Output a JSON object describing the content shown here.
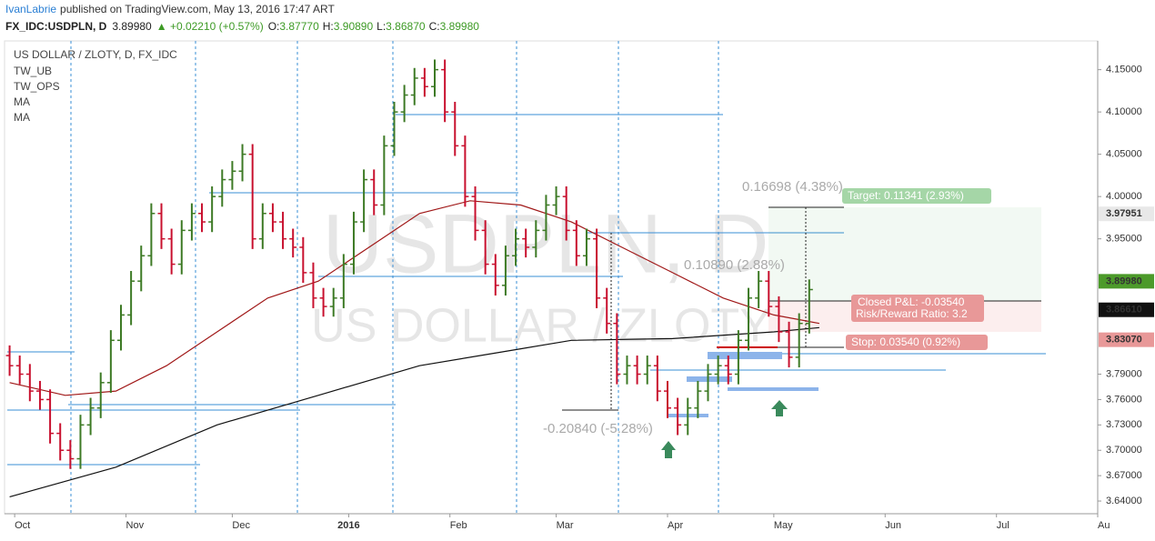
{
  "header": {
    "author": "IvanLabrie",
    "published": "published on TradingView.com, May 13, 2016 17:47 ART",
    "symbol": "FX_IDC:USDPLN, D",
    "last": "3.89980",
    "change": "▲ +0.02210 (+0.57%)",
    "open_label": "O:",
    "open": "3.87770",
    "high_label": "H:",
    "high": "3.90890",
    "low_label": "L:",
    "low": "3.86870",
    "close_label": "C:",
    "close": "3.89980"
  },
  "chart_data": {
    "type": "ohlc",
    "title": "US DOLLAR / ZLOTY, D, FX_IDC",
    "indicators": [
      "TW_UB",
      "TW_OPS",
      "MA",
      "MA"
    ],
    "watermark": "USDPLN, D",
    "watermark_sub": "US DOLLAR / ZLOTY",
    "up_color": "#3d7a25",
    "down_color": "#c8102e",
    "xlim": [
      -2,
      214
    ],
    "ylim": [
      3.625,
      4.184
    ],
    "xticks": [
      {
        "value": 0,
        "label": "Oct"
      },
      {
        "value": 22,
        "label": "Nov"
      },
      {
        "value": 43,
        "label": "Dec"
      },
      {
        "value": 66,
        "label": "2016"
      },
      {
        "value": 86,
        "label": "Feb"
      },
      {
        "value": 107,
        "label": "Mar"
      },
      {
        "value": 129,
        "label": "Apr"
      },
      {
        "value": 150,
        "label": "May"
      },
      {
        "value": 172,
        "label": "Jun"
      },
      {
        "value": 194,
        "label": "Jul"
      },
      {
        "value": 214,
        "label": "Au"
      }
    ],
    "yticks": [
      {
        "value": 3.64,
        "label": "3.64000"
      },
      {
        "value": 3.67,
        "label": "3.67000"
      },
      {
        "value": 3.7,
        "label": "3.70000"
      },
      {
        "value": 3.73,
        "label": "3.73000"
      },
      {
        "value": 3.76,
        "label": "3.76000"
      },
      {
        "value": 3.79,
        "label": "3.79000"
      },
      {
        "value": 3.95,
        "label": "3.95000"
      },
      {
        "value": 4.0,
        "label": "4.00000"
      },
      {
        "value": 4.05,
        "label": "4.05000"
      },
      {
        "value": 4.1,
        "label": "4.10000"
      },
      {
        "value": 4.15,
        "label": "4.15000"
      }
    ],
    "x": [
      -1,
      1,
      3,
      5,
      7,
      9,
      11,
      13,
      15,
      17,
      19,
      21,
      23,
      25,
      27,
      29,
      31,
      33,
      35,
      37,
      39,
      41,
      43,
      45,
      47,
      49,
      51,
      53,
      55,
      57,
      59,
      61,
      63,
      65,
      67,
      69,
      71,
      73,
      75,
      77,
      79,
      81,
      83,
      85,
      87,
      89,
      91,
      93,
      95,
      97,
      99,
      101,
      103,
      105,
      107,
      109,
      111,
      113,
      115,
      117,
      119,
      121,
      123,
      125,
      127,
      129,
      131,
      133,
      135,
      137,
      139,
      141,
      143,
      145,
      147,
      149,
      151,
      153,
      155,
      157
    ],
    "ohlc": [
      [
        3.812,
        3.824,
        3.788,
        3.8
      ],
      [
        3.8,
        3.812,
        3.778,
        3.79
      ],
      [
        3.79,
        3.802,
        3.758,
        3.77
      ],
      [
        3.77,
        3.782,
        3.748,
        3.76
      ],
      [
        3.76,
        3.772,
        3.708,
        3.72
      ],
      [
        3.72,
        3.732,
        3.688,
        3.7
      ],
      [
        3.7,
        3.712,
        3.678,
        3.69
      ],
      [
        3.69,
        3.742,
        3.678,
        3.73
      ],
      [
        3.73,
        3.762,
        3.718,
        3.75
      ],
      [
        3.75,
        3.792,
        3.738,
        3.78
      ],
      [
        3.78,
        3.842,
        3.768,
        3.83
      ],
      [
        3.83,
        3.872,
        3.818,
        3.86
      ],
      [
        3.86,
        3.912,
        3.848,
        3.9
      ],
      [
        3.9,
        3.942,
        3.888,
        3.93
      ],
      [
        3.93,
        3.992,
        3.918,
        3.98
      ],
      [
        3.98,
        3.992,
        3.938,
        3.95
      ],
      [
        3.95,
        3.962,
        3.908,
        3.92
      ],
      [
        3.92,
        3.972,
        3.908,
        3.96
      ],
      [
        3.96,
        3.992,
        3.948,
        3.98
      ],
      [
        3.98,
        3.992,
        3.958,
        3.97
      ],
      [
        3.97,
        4.012,
        3.958,
        4.0
      ],
      [
        4.0,
        4.032,
        3.988,
        4.02
      ],
      [
        4.02,
        4.042,
        4.008,
        4.03
      ],
      [
        4.03,
        4.062,
        4.018,
        4.05
      ],
      [
        4.05,
        4.062,
        3.938,
        3.95
      ],
      [
        3.95,
        3.992,
        3.938,
        3.98
      ],
      [
        3.98,
        3.992,
        3.958,
        3.97
      ],
      [
        3.97,
        3.982,
        3.938,
        3.95
      ],
      [
        3.95,
        3.962,
        3.928,
        3.94
      ],
      [
        3.94,
        3.952,
        3.898,
        3.91
      ],
      [
        3.91,
        3.922,
        3.868,
        3.88
      ],
      [
        3.88,
        3.892,
        3.858,
        3.87
      ],
      [
        3.87,
        3.892,
        3.858,
        3.88
      ],
      [
        3.88,
        3.932,
        3.868,
        3.92
      ],
      [
        3.92,
        3.982,
        3.908,
        3.97
      ],
      [
        3.97,
        4.032,
        3.958,
        4.02
      ],
      [
        4.02,
        4.032,
        3.978,
        3.99
      ],
      [
        3.99,
        4.072,
        3.978,
        4.06
      ],
      [
        4.06,
        4.112,
        4.048,
        4.1
      ],
      [
        4.1,
        4.132,
        4.088,
        4.12
      ],
      [
        4.12,
        4.152,
        4.108,
        4.14
      ],
      [
        4.14,
        4.152,
        4.118,
        4.13
      ],
      [
        4.13,
        4.162,
        4.118,
        4.15
      ],
      [
        4.15,
        4.162,
        4.088,
        4.1
      ],
      [
        4.1,
        4.112,
        4.048,
        4.06
      ],
      [
        4.06,
        4.072,
        3.988,
        4.0
      ],
      [
        4.0,
        4.012,
        3.948,
        3.96
      ],
      [
        3.96,
        3.972,
        3.908,
        3.92
      ],
      [
        3.92,
        3.932,
        3.883,
        3.895
      ],
      [
        3.895,
        3.942,
        3.883,
        3.93
      ],
      [
        3.93,
        3.962,
        3.918,
        3.95
      ],
      [
        3.95,
        3.962,
        3.928,
        3.94
      ],
      [
        3.94,
        3.972,
        3.928,
        3.96
      ],
      [
        3.96,
        4.002,
        3.948,
        3.99
      ],
      [
        3.99,
        4.012,
        3.978,
        4.0
      ],
      [
        4.0,
        4.012,
        3.948,
        3.96
      ],
      [
        3.96,
        3.972,
        3.918,
        3.93
      ],
      [
        3.93,
        3.962,
        3.918,
        3.95
      ],
      [
        3.95,
        3.962,
        3.868,
        3.88
      ],
      [
        3.88,
        3.892,
        3.838,
        3.85
      ],
      [
        3.85,
        3.862,
        3.778,
        3.79
      ],
      [
        3.79,
        3.812,
        3.778,
        3.8
      ],
      [
        3.8,
        3.812,
        3.778,
        3.79
      ],
      [
        3.79,
        3.812,
        3.778,
        3.8
      ],
      [
        3.8,
        3.812,
        3.758,
        3.77
      ],
      [
        3.77,
        3.782,
        3.738,
        3.75
      ],
      [
        3.75,
        3.762,
        3.718,
        3.73
      ],
      [
        3.73,
        3.762,
        3.718,
        3.75
      ],
      [
        3.75,
        3.782,
        3.738,
        3.77
      ],
      [
        3.77,
        3.802,
        3.758,
        3.79
      ],
      [
        3.79,
        3.812,
        3.778,
        3.8
      ],
      [
        3.8,
        3.812,
        3.778,
        3.79
      ],
      [
        3.79,
        3.842,
        3.778,
        3.83
      ],
      [
        3.83,
        3.892,
        3.818,
        3.88
      ],
      [
        3.88,
        3.912,
        3.868,
        3.9
      ],
      [
        3.9,
        3.912,
        3.858,
        3.87
      ],
      [
        3.87,
        3.882,
        3.828,
        3.84
      ],
      [
        3.84,
        3.852,
        3.798,
        3.81
      ],
      [
        3.81,
        3.862,
        3.798,
        3.85
      ],
      [
        3.85,
        3.902,
        3.838,
        3.89
      ]
    ],
    "series": [
      {
        "name": "MA",
        "color": "#a01818",
        "x": [
          -1,
          10,
          20,
          30,
          40,
          50,
          60,
          70,
          80,
          90,
          100,
          110,
          120,
          130,
          140,
          150,
          159
        ],
        "values": [
          3.78,
          3.765,
          3.77,
          3.8,
          3.84,
          3.88,
          3.9,
          3.94,
          3.98,
          3.995,
          3.99,
          3.97,
          3.94,
          3.91,
          3.88,
          3.86,
          3.85
        ]
      },
      {
        "name": "MA",
        "color": "#111111",
        "x": [
          -1,
          20,
          40,
          60,
          80,
          100,
          110,
          130,
          150,
          159
        ],
        "values": [
          3.645,
          3.68,
          3.73,
          3.765,
          3.8,
          3.82,
          3.83,
          3.832,
          3.84,
          3.845
        ]
      }
    ],
    "price_labels": [
      {
        "value": 3.97951,
        "label": "3.97951",
        "color": "#e8e8e8",
        "text_color": "#222222"
      },
      {
        "value": 3.8998,
        "label": "3.89980",
        "color": "#4c9a2a",
        "text_color": "#ffffff"
      },
      {
        "value": 3.8661,
        "label": "3.86610",
        "color": "#111111",
        "text_color": "#ffffff"
      },
      {
        "value": 3.8307,
        "label": "3.83070",
        "color": "#e89898",
        "text_color": "#222222"
      }
    ],
    "annotations": {
      "total_move": "0.16698 (4.38%)",
      "target": "Target: 0.11341 (2.93%)",
      "mid_move": "0.10890 (2.88%)",
      "closed_pl": "Closed P&L: -0.03540",
      "risk_reward": "Risk/Reward Ratio: 3.2",
      "stop": "Stop: 0.03540 (0.92%)",
      "drop": "-0.20840 (-5.28%)"
    }
  }
}
